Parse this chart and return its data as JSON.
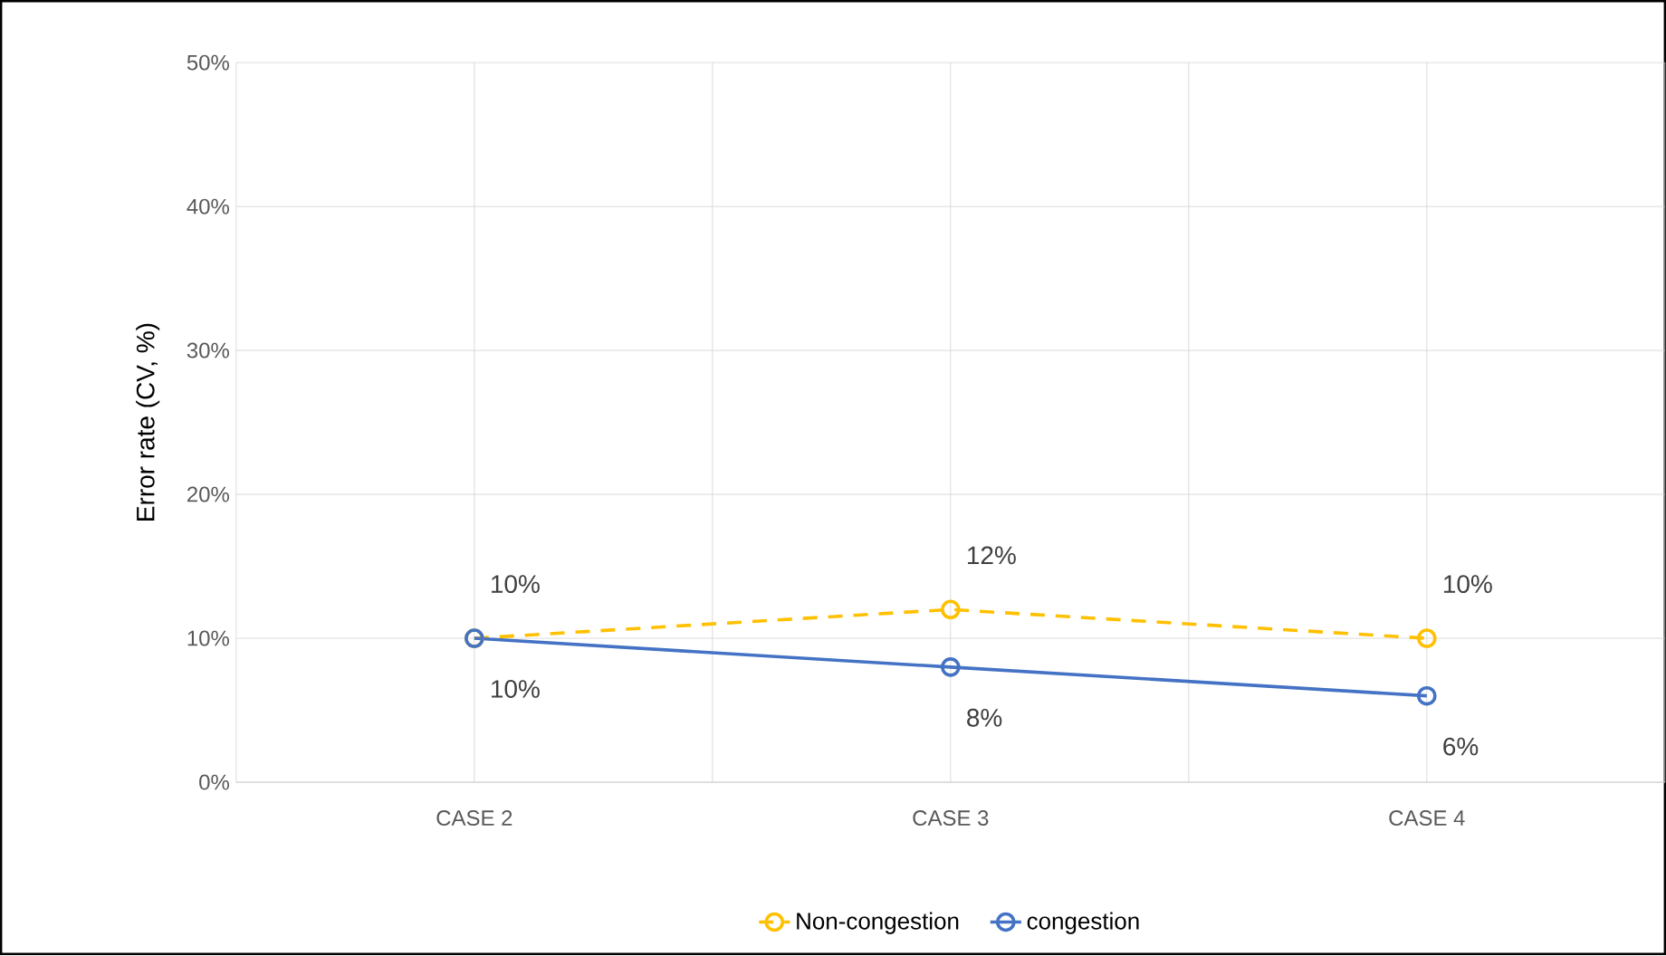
{
  "chart_data": {
    "type": "line",
    "ylabel": "Error rate (CV, %)",
    "categories": [
      "CASE 2",
      "CASE 3",
      "CASE 4"
    ],
    "series": [
      {
        "name": "Non-congestion",
        "color": "#ffc000",
        "line_style": "dashed",
        "values": [
          10,
          12,
          10
        ],
        "value_labels": [
          "10%",
          "12%",
          "10%"
        ]
      },
      {
        "name": "congestion",
        "color": "#4472c4",
        "line_style": "solid",
        "values": [
          10,
          8,
          6
        ],
        "value_labels": [
          "10%",
          "8%",
          "6%"
        ]
      }
    ],
    "ylim": [
      0,
      50
    ],
    "yticks": [
      {
        "value": 0,
        "label": "0%"
      },
      {
        "value": 10,
        "label": "10%"
      },
      {
        "value": 20,
        "label": "20%"
      },
      {
        "value": 30,
        "label": "30%"
      },
      {
        "value": 40,
        "label": "40%"
      },
      {
        "value": 50,
        "label": "50%"
      }
    ],
    "grid": true,
    "legend": "bottom",
    "marker": "circle"
  }
}
